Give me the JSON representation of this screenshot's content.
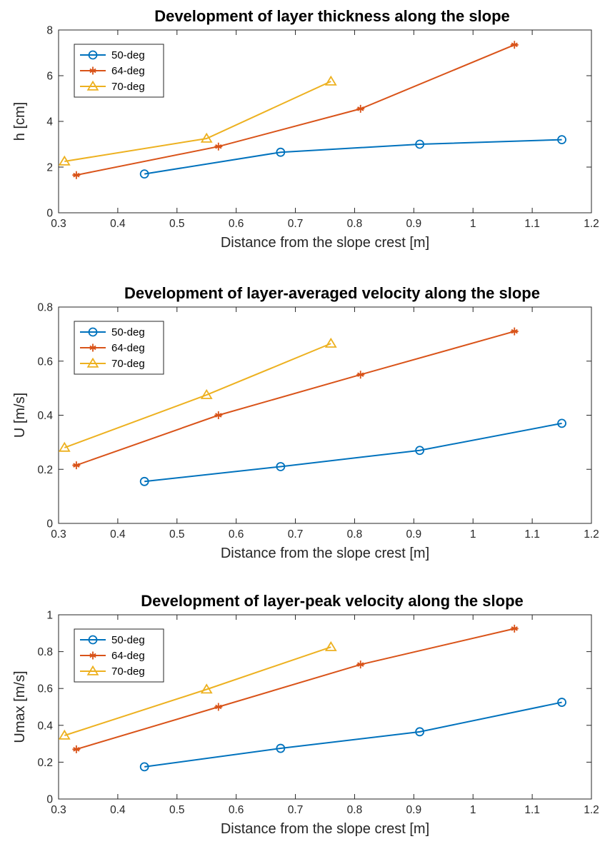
{
  "chart_data": [
    {
      "type": "line",
      "title": "Development of layer thickness along the slope",
      "xlabel": "Distance from the slope crest [m]",
      "ylabel": "h [cm]",
      "xlim": [
        0.3,
        1.2
      ],
      "ylim": [
        0,
        8
      ],
      "xticks": [
        0.3,
        0.4,
        0.5,
        0.6,
        0.7,
        0.8,
        0.9,
        1.0,
        1.1,
        1.2
      ],
      "xtick_labels": [
        "0.3",
        "0.4",
        "0.5",
        "0.6",
        "0.7",
        "0.8",
        "0.9",
        "1",
        "1.1",
        "1.2"
      ],
      "yticks": [
        0,
        2,
        4,
        6,
        8
      ],
      "ytick_labels": [
        "0",
        "2",
        "4",
        "6",
        "8"
      ],
      "grid": false,
      "legend": "top-left",
      "series": [
        {
          "name": "50-deg",
          "color": "#0072BD",
          "marker": "circle",
          "x": [
            0.445,
            0.675,
            0.91,
            1.15
          ],
          "y": [
            1.7,
            2.65,
            3.0,
            3.2
          ]
        },
        {
          "name": "64-deg",
          "color": "#D95319",
          "marker": "asterisk",
          "x": [
            0.33,
            0.57,
            0.81,
            1.07
          ],
          "y": [
            1.65,
            2.9,
            4.55,
            7.35
          ]
        },
        {
          "name": "70-deg",
          "color": "#EDB120",
          "marker": "triangle",
          "x": [
            0.31,
            0.55,
            0.76
          ],
          "y": [
            2.25,
            3.25,
            5.75
          ]
        }
      ]
    },
    {
      "type": "line",
      "title": "Development of layer-averaged velocity along the slope",
      "xlabel": "Distance from the slope crest [m]",
      "ylabel": "U [m/s]",
      "xlim": [
        0.3,
        1.2
      ],
      "ylim": [
        0,
        0.8
      ],
      "xticks": [
        0.3,
        0.4,
        0.5,
        0.6,
        0.7,
        0.8,
        0.9,
        1.0,
        1.1,
        1.2
      ],
      "xtick_labels": [
        "0.3",
        "0.4",
        "0.5",
        "0.6",
        "0.7",
        "0.8",
        "0.9",
        "1",
        "1.1",
        "1.2"
      ],
      "yticks": [
        0,
        0.2,
        0.4,
        0.6,
        0.8
      ],
      "ytick_labels": [
        "0",
        "0.2",
        "0.4",
        "0.6",
        "0.8"
      ],
      "grid": false,
      "legend": "top-left",
      "series": [
        {
          "name": "50-deg",
          "color": "#0072BD",
          "marker": "circle",
          "x": [
            0.445,
            0.675,
            0.91,
            1.15
          ],
          "y": [
            0.155,
            0.21,
            0.27,
            0.37
          ]
        },
        {
          "name": "64-deg",
          "color": "#D95319",
          "marker": "asterisk",
          "x": [
            0.33,
            0.57,
            0.81,
            1.07
          ],
          "y": [
            0.215,
            0.4,
            0.55,
            0.71
          ]
        },
        {
          "name": "70-deg",
          "color": "#EDB120",
          "marker": "triangle",
          "x": [
            0.31,
            0.55,
            0.76
          ],
          "y": [
            0.28,
            0.475,
            0.665
          ]
        }
      ]
    },
    {
      "type": "line",
      "title": "Development of layer-peak velocity along the slope",
      "xlabel": "Distance from the slope crest [m]",
      "ylabel": "Umax [m/s]",
      "xlim": [
        0.3,
        1.2
      ],
      "ylim": [
        0,
        1
      ],
      "xticks": [
        0.3,
        0.4,
        0.5,
        0.6,
        0.7,
        0.8,
        0.9,
        1.0,
        1.1,
        1.2
      ],
      "xtick_labels": [
        "0.3",
        "0.4",
        "0.5",
        "0.6",
        "0.7",
        "0.8",
        "0.9",
        "1",
        "1.1",
        "1.2"
      ],
      "yticks": [
        0,
        0.2,
        0.4,
        0.6,
        0.8,
        1.0
      ],
      "ytick_labels": [
        "0",
        "0.2",
        "0.4",
        "0.6",
        "0.8",
        "1"
      ],
      "grid": false,
      "legend": "top-left",
      "series": [
        {
          "name": "50-deg",
          "color": "#0072BD",
          "marker": "circle",
          "x": [
            0.445,
            0.675,
            0.91,
            1.15
          ],
          "y": [
            0.175,
            0.275,
            0.365,
            0.525
          ]
        },
        {
          "name": "64-deg",
          "color": "#D95319",
          "marker": "asterisk",
          "x": [
            0.33,
            0.57,
            0.81,
            1.07
          ],
          "y": [
            0.27,
            0.5,
            0.73,
            0.925
          ]
        },
        {
          "name": "70-deg",
          "color": "#EDB120",
          "marker": "triangle",
          "x": [
            0.31,
            0.55,
            0.76
          ],
          "y": [
            0.345,
            0.595,
            0.825
          ]
        }
      ]
    }
  ]
}
